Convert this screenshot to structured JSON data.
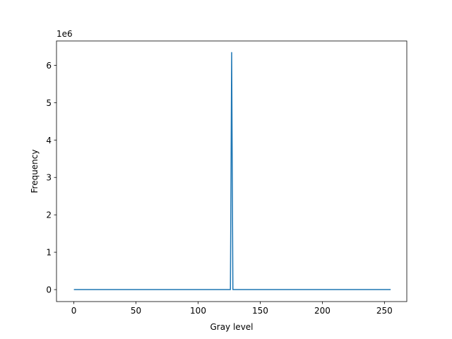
{
  "chart_data": {
    "type": "line",
    "title": "",
    "xlabel": "Gray level",
    "ylabel": "Frequency",
    "y_offset_label": "1e6",
    "xlim": [
      -14,
      268
    ],
    "ylim": [
      -0.32,
      6.65
    ],
    "y_scale_factor": 1000000,
    "x_ticks": [
      0,
      50,
      100,
      150,
      200,
      250
    ],
    "x_tick_labels": [
      "0",
      "50",
      "100",
      "150",
      "200",
      "250"
    ],
    "y_ticks": [
      0,
      1,
      2,
      3,
      4,
      5,
      6
    ],
    "y_tick_labels": [
      "0",
      "1",
      "2",
      "3",
      "4",
      "5",
      "6"
    ],
    "grid": false,
    "line_color": "#1f77b4",
    "series": [
      {
        "points": [
          [
            0,
            0
          ],
          [
            125,
            0
          ],
          [
            126,
            0
          ],
          [
            127,
            6.34
          ],
          [
            128,
            0
          ],
          [
            129,
            0
          ],
          [
            255,
            0
          ]
        ]
      }
    ]
  }
}
